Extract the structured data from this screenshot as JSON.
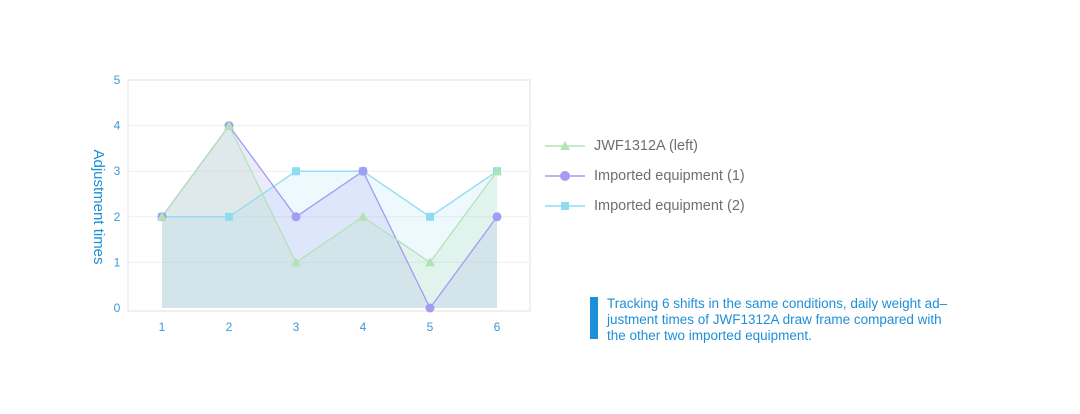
{
  "chart_data": {
    "type": "area",
    "title": "",
    "xlabel": "",
    "ylabel": "Adjustment times",
    "x": [
      1,
      2,
      3,
      4,
      5,
      6
    ],
    "ylim": [
      0,
      5
    ],
    "yticks": [
      0,
      1,
      2,
      3,
      4,
      5
    ],
    "grid": true,
    "legend_position": "right",
    "series": [
      {
        "name": "JWF1312A (left)",
        "values": [
          2,
          4,
          1,
          2,
          1,
          3
        ],
        "color": "#b3e3b5",
        "marker": "triangle"
      },
      {
        "name": "Imported equipment (1)",
        "values": [
          2,
          4,
          2,
          3,
          0,
          2
        ],
        "color": "#a29cf2",
        "marker": "circle"
      },
      {
        "name": "Imported equipment (2)",
        "values": [
          2,
          2,
          3,
          3,
          2,
          3
        ],
        "color": "#8fdcf2",
        "marker": "square"
      }
    ]
  },
  "caption": {
    "lines": [
      "Tracking 6 shifts in the same conditions, daily weight ad–",
      "justment times of JWF1312A draw frame compared with",
      "the other two imported equipment."
    ]
  },
  "colors": {
    "accent": "#1b8fd8",
    "plot_border": "#e2e2e2",
    "gridline": "#efefef"
  }
}
